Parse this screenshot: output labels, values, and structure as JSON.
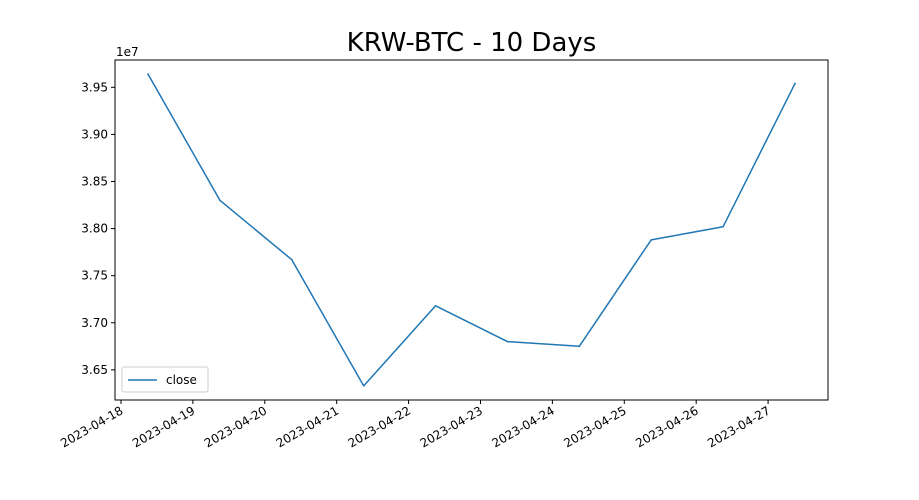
{
  "chart_data": {
    "type": "line",
    "title": "KRW-BTC - 10 Days",
    "xlabel": "",
    "ylabel": "",
    "y_offset_label": "1e7",
    "x": [
      "2023-04-18 09:00",
      "2023-04-19 09:00",
      "2023-04-20 09:00",
      "2023-04-21 09:00",
      "2023-04-22 09:00",
      "2023-04-23 09:00",
      "2023-04-24 09:00",
      "2023-04-25 09:00",
      "2023-04-26 09:00",
      "2023-04-27 09:00"
    ],
    "series": [
      {
        "name": "close",
        "color": "#1f77b4",
        "values": [
          39640000,
          38300000,
          37670000,
          36330000,
          37180000,
          36800000,
          36750000,
          37880000,
          38020000,
          39540000
        ]
      }
    ],
    "xticks": [
      "2023-04-18",
      "2023-04-19",
      "2023-04-20",
      "2023-04-21",
      "2023-04-22",
      "2023-04-23",
      "2023-04-24",
      "2023-04-25",
      "2023-04-26",
      "2023-04-27"
    ],
    "yticks": [
      "3.65",
      "3.70",
      "3.75",
      "3.80",
      "3.85",
      "3.90",
      "3.95"
    ],
    "xlim": [
      "2023-04-17 22:00",
      "2023-04-27 20:00"
    ],
    "ylim": [
      36180000,
      39790000
    ],
    "grid": false,
    "legend": "lower-left"
  }
}
